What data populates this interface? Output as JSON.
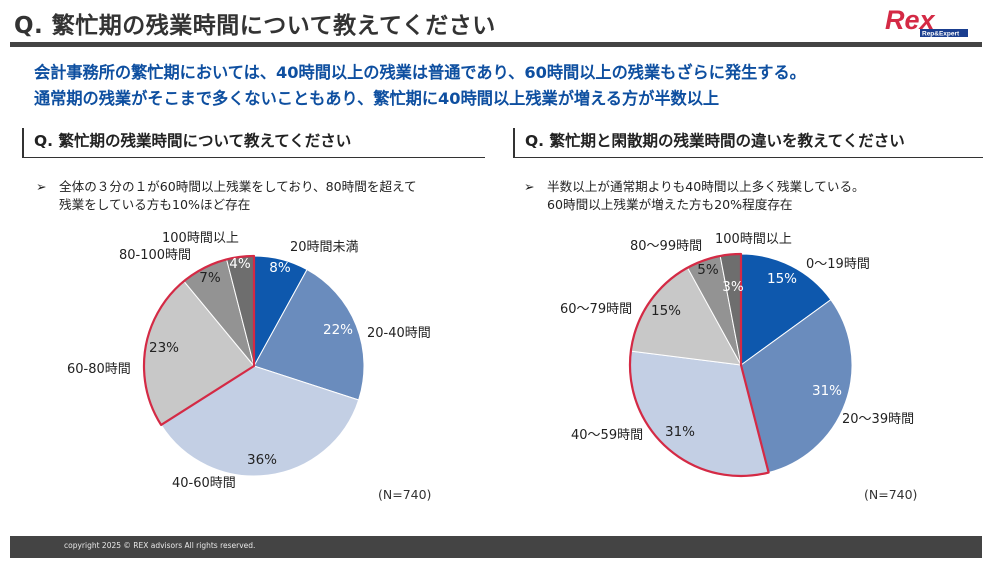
{
  "header": {
    "title": "Q. 繁忙期の残業時間について教えてください",
    "logo_text": "Rex",
    "logo_sub": "Rep&Expert"
  },
  "summary": {
    "line1": "会計事務所の繁忙期においては、40時間以上の残業は普通であり、60時間以上の残業もざらに発生する。",
    "line2": "通常期の残業がそこまで多くないこともあり、繁忙期に40時間以上残業が増える方が半数以上"
  },
  "left_panel": {
    "heading": "Q. 繁忙期の残業時間について教えてください",
    "bullet_mark": "➢",
    "bullet_line1": "全体の３分の１が60時間以上残業をしており、80時間を超えて",
    "bullet_line2": "残業をしている方も10%ほど存在",
    "n_label": "(N=740)"
  },
  "right_panel": {
    "heading": "Q. 繁忙期と閑散期の残業時間の違いを教えてください",
    "bullet_mark": "➢",
    "bullet_line1": "半数以上が通常期よりも40時間以上多く残業している。",
    "bullet_line2": "60時間以上残業が増えた方も20%程度存在",
    "n_label": "(N=740)"
  },
  "footer": {
    "copyright": "copyright 2025 © REX advisors All rights reserved."
  },
  "colors": {
    "accent_blue": "#0e4fa0",
    "highlight_red": "#d42a45",
    "logo_red": "#d42a45"
  },
  "chart_data": [
    {
      "type": "pie",
      "title": "",
      "categories": [
        "20時間未満",
        "20-40時間",
        "40-60時間",
        "60-80時間",
        "80-100時間",
        "100時間以上"
      ],
      "values": [
        8,
        22,
        36,
        23,
        7,
        4
      ],
      "labels": [
        "8%",
        "22%",
        "36%",
        "23%",
        "7%",
        "4%"
      ],
      "colors": [
        "#0e58ad",
        "#6a8cbd",
        "#c3cfe4",
        "#c8c8c8",
        "#939393",
        "#6e6e6e"
      ],
      "highlighted": [
        "60-80時間",
        "80-100時間",
        "100時間以上"
      ]
    },
    {
      "type": "pie",
      "title": "",
      "categories": [
        "0～19時間",
        "20～39時間",
        "40～59時間",
        "60～79時間",
        "80～99時間",
        "100時間以上"
      ],
      "values": [
        15,
        31,
        31,
        15,
        5,
        3
      ],
      "labels": [
        "15%",
        "31%",
        "31%",
        "15%",
        "5%",
        "3%"
      ],
      "colors": [
        "#0e58ad",
        "#6a8cbd",
        "#c3cfe4",
        "#c8c8c8",
        "#939393",
        "#6e6e6e"
      ],
      "highlighted": [
        "40～59時間",
        "60～79時間",
        "80～99時間",
        "100時間以上"
      ]
    }
  ]
}
